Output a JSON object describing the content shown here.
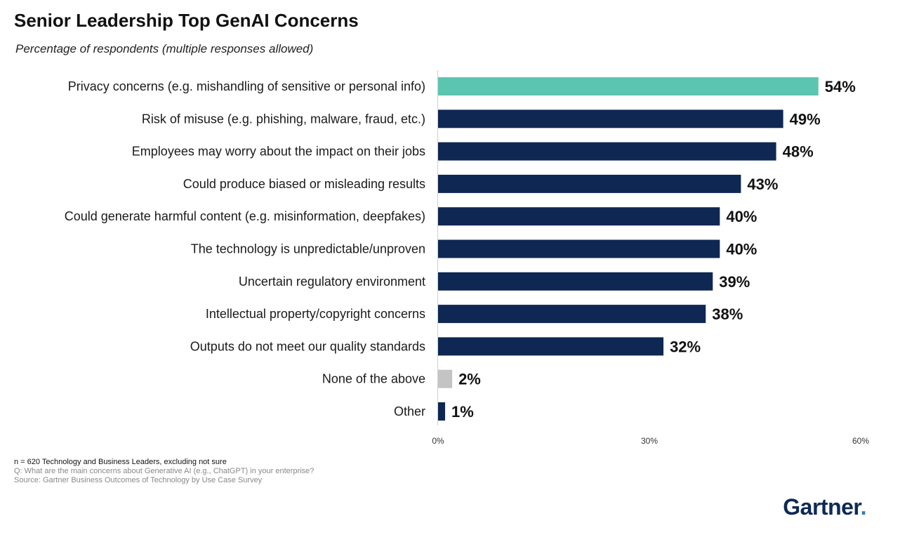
{
  "title": "Senior Leadership Top GenAI Concerns",
  "subtitle": "Percentage of respondents (multiple responses allowed)",
  "colors": {
    "highlight": "#5cc5b0",
    "primary": "#0e2753",
    "neutral": "#c4c4c4",
    "axis": "#d0d0d0"
  },
  "chart_data": {
    "type": "bar",
    "orientation": "horizontal",
    "title": "Senior Leadership Top GenAI Concerns",
    "subtitle": "Percentage of respondents (multiple responses allowed)",
    "categories": [
      "Privacy concerns (e.g. mishandling of sensitive or personal info)",
      "Risk of misuse (e.g. phishing, malware, fraud, etc.)",
      "Employees may worry about the impact on their jobs",
      "Could produce biased or misleading results",
      "Could generate harmful content (e.g. misinformation, deepfakes)",
      "The technology is unpredictable/unproven",
      "Uncertain regulatory environment",
      "Intellectual property/copyright concerns",
      "Outputs do not meet our quality standards",
      "None of the above",
      "Other"
    ],
    "values": [
      54,
      49,
      48,
      43,
      40,
      40,
      39,
      38,
      32,
      2,
      1
    ],
    "value_labels": [
      "54%",
      "49%",
      "48%",
      "43%",
      "40%",
      "40%",
      "39%",
      "38%",
      "32%",
      "2%",
      "1%"
    ],
    "bar_colors": [
      "highlight",
      "primary",
      "primary",
      "primary",
      "primary",
      "primary",
      "primary",
      "primary",
      "primary",
      "neutral",
      "primary"
    ],
    "xlim": [
      0,
      60
    ],
    "xticks": [
      0,
      30,
      60
    ],
    "xtick_labels": [
      "0%",
      "30%",
      "60%"
    ],
    "xlabel": "",
    "ylabel": "",
    "grid": false,
    "legend": "none"
  },
  "footer": {
    "n_note": "n = 620 Technology and Business Leaders, excluding not sure",
    "question": "Q: What are the main concerns about Generative AI (e.g., ChatGPT) in your enterprise?",
    "source": "Source: Gartner Business Outcomes of Technology by Use Case Survey"
  },
  "logo": {
    "text": "Gartner",
    "dot": "."
  }
}
